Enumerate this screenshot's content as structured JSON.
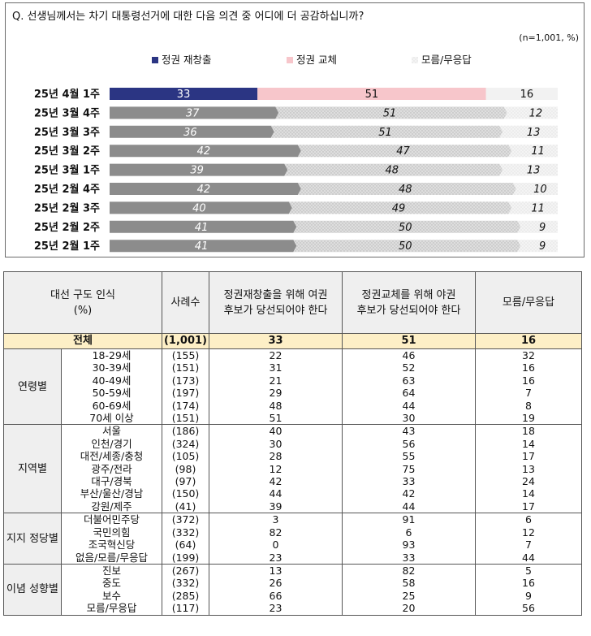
{
  "question": "Q. 선생님께서는 차기 대통령선거에 대한 다음 의견 중 어디에 더 공감하십니까?",
  "sample_note": "(n=1,001, %)",
  "colors": {
    "series1_latest": "#2b3583",
    "series2_latest": "#f7c6cb",
    "series1_past": "#8c8c8c",
    "series2_past": "#d9d9d9",
    "series3": "#f2f2f2",
    "total_row": "#fdefc6",
    "header_bg": "#efefef"
  },
  "chart_data": {
    "type": "bar",
    "orientation": "horizontal-stacked-100",
    "categories": [
      "25년 4월 1주",
      "25년 3월 4주",
      "25년 3월 3주",
      "25년 3월 2주",
      "25년 3월 1주",
      "25년 2월 4주",
      "25년 2월 3주",
      "25년 2월 2주",
      "25년 2월 1주"
    ],
    "series": [
      {
        "name": "정권 재창출",
        "values": [
          33,
          37,
          36,
          42,
          39,
          42,
          40,
          41,
          41
        ]
      },
      {
        "name": "정권 교체",
        "values": [
          51,
          51,
          51,
          47,
          48,
          48,
          49,
          50,
          50
        ]
      },
      {
        "name": "모름/무응답",
        "values": [
          16,
          12,
          13,
          11,
          13,
          10,
          11,
          9,
          9
        ]
      }
    ],
    "legend_position": "top",
    "xlim": [
      0,
      100
    ]
  },
  "table": {
    "header": {
      "group": "대선 구도 인식",
      "unit": "(%)",
      "sample": "사례수",
      "col1": "정권재창출을 위해 여권 후보가 당선되어야 한다",
      "col2": "정권교체를 위해 야권 후보가 당선되어야 한다",
      "col3": "모름/무응답"
    },
    "total": {
      "label": "전체",
      "n": "(1,001)",
      "v1": "33",
      "v2": "51",
      "v3": "16"
    },
    "groups": [
      {
        "name": "연령별",
        "rows": [
          {
            "label": "18-29세",
            "n": "(155)",
            "v1": "22",
            "v2": "46",
            "v3": "32"
          },
          {
            "label": "30-39세",
            "n": "(151)",
            "v1": "31",
            "v2": "52",
            "v3": "16"
          },
          {
            "label": "40-49세",
            "n": "(173)",
            "v1": "21",
            "v2": "63",
            "v3": "16"
          },
          {
            "label": "50-59세",
            "n": "(197)",
            "v1": "29",
            "v2": "64",
            "v3": "7"
          },
          {
            "label": "60-69세",
            "n": "(174)",
            "v1": "48",
            "v2": "44",
            "v3": "8"
          },
          {
            "label": "70세 이상",
            "n": "(151)",
            "v1": "51",
            "v2": "30",
            "v3": "19"
          }
        ]
      },
      {
        "name": "지역별",
        "rows": [
          {
            "label": "서울",
            "n": "(186)",
            "v1": "40",
            "v2": "43",
            "v3": "18"
          },
          {
            "label": "인천/경기",
            "n": "(324)",
            "v1": "30",
            "v2": "56",
            "v3": "14"
          },
          {
            "label": "대전/세종/충청",
            "n": "(105)",
            "v1": "28",
            "v2": "55",
            "v3": "17"
          },
          {
            "label": "광주/전라",
            "n": "(98)",
            "v1": "12",
            "v2": "75",
            "v3": "13"
          },
          {
            "label": "대구/경북",
            "n": "(97)",
            "v1": "42",
            "v2": "33",
            "v3": "24"
          },
          {
            "label": "부산/울산/경남",
            "n": "(150)",
            "v1": "44",
            "v2": "42",
            "v3": "14"
          },
          {
            "label": "강원/제주",
            "n": "(41)",
            "v1": "39",
            "v2": "44",
            "v3": "17"
          }
        ]
      },
      {
        "name": "지지 정당별",
        "rows": [
          {
            "label": "더불어민주당",
            "n": "(372)",
            "v1": "3",
            "v2": "91",
            "v3": "6"
          },
          {
            "label": "국민의힘",
            "n": "(332)",
            "v1": "82",
            "v2": "6",
            "v3": "12"
          },
          {
            "label": "조국혁신당",
            "n": "(64)",
            "v1": "0",
            "v2": "93",
            "v3": "7"
          },
          {
            "label": "없음/모름/무응답",
            "n": "(199)",
            "v1": "23",
            "v2": "33",
            "v3": "44"
          }
        ]
      },
      {
        "name": "이념 성향별",
        "rows": [
          {
            "label": "진보",
            "n": "(267)",
            "v1": "13",
            "v2": "82",
            "v3": "5"
          },
          {
            "label": "중도",
            "n": "(332)",
            "v1": "26",
            "v2": "58",
            "v3": "16"
          },
          {
            "label": "보수",
            "n": "(285)",
            "v1": "66",
            "v2": "25",
            "v3": "9"
          },
          {
            "label": "모름/무응답",
            "n": "(117)",
            "v1": "23",
            "v2": "20",
            "v3": "56"
          }
        ]
      }
    ]
  }
}
